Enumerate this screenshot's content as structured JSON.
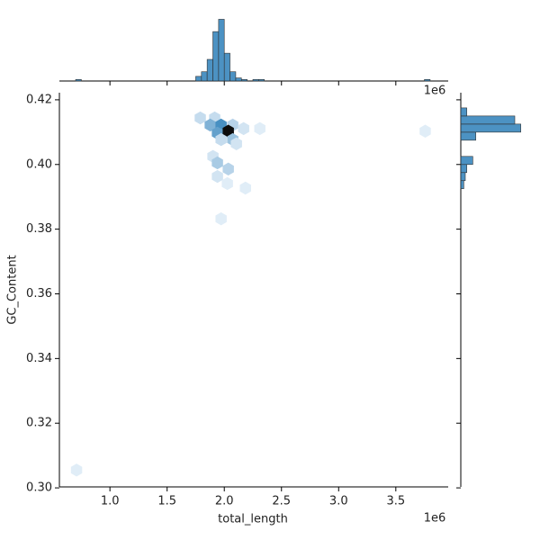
{
  "chart_data": {
    "type": "hexbin",
    "x_label": "total_length",
    "y_label": "GC_Content",
    "offset_label": "1e6",
    "color": "#1f77b4",
    "xlim": [
      558000,
      3958000
    ],
    "ylim": [
      0.3003,
      0.4222
    ],
    "xticks": [
      {
        "value": 1000000,
        "label": "1.0"
      },
      {
        "value": 1500000,
        "label": "1.5"
      },
      {
        "value": 2000000,
        "label": "2.0"
      },
      {
        "value": 2500000,
        "label": "2.5"
      },
      {
        "value": 3000000,
        "label": "3.0"
      },
      {
        "value": 3500000,
        "label": "3.5"
      }
    ],
    "yticks": [
      {
        "value": 0.3,
        "label": "0.30"
      },
      0.32,
      0.34,
      0.36,
      0.38,
      {
        "value": 0.4,
        "label": "0.40"
      },
      0.42
    ],
    "hexbin": {
      "x": [
        1790000,
        1916000,
        1877000,
        1972000,
        2074000,
        2169000,
        2311000,
        1940000,
        2035000,
        1972000,
        2074000,
        2106000,
        1901000,
        1940000,
        2035000,
        1940000,
        2027000,
        2185000,
        1972000,
        708000,
        3757000
      ],
      "y": [
        0.4144,
        0.4144,
        0.4122,
        0.4122,
        0.4122,
        0.4111,
        0.4111,
        0.4097,
        0.4103,
        0.4077,
        0.4077,
        0.4064,
        0.4025,
        0.4005,
        0.3986,
        0.3963,
        0.3941,
        0.3927,
        0.3832,
        0.3055,
        0.4103
      ],
      "counts": [
        3,
        3,
        8,
        12,
        4,
        2,
        1,
        10,
        25,
        3,
        6,
        2,
        2,
        5,
        4,
        2,
        1,
        1,
        1,
        1,
        1
      ]
    },
    "x_hist": {
      "bins": [
        700000,
        750000,
        800000,
        850000,
        900000,
        950000,
        1000000,
        1050000,
        1100000,
        1150000,
        1200000,
        1250000,
        1300000,
        1350000,
        1400000,
        1450000,
        1500000,
        1550000,
        1600000,
        1650000,
        1700000,
        1750000,
        1800000,
        1850000,
        1900000,
        1950000,
        2000000,
        2050000,
        2100000,
        2150000,
        2200000,
        2250000,
        2300000,
        2350000,
        2400000,
        2450000,
        2500000,
        2550000,
        2600000,
        2650000,
        2700000,
        2750000,
        2800000,
        2850000,
        2900000,
        2950000,
        3000000,
        3050000,
        3100000,
        3150000,
        3200000,
        3250000,
        3300000,
        3350000,
        3400000,
        3450000,
        3500000,
        3550000,
        3600000,
        3650000,
        3700000,
        3750000,
        3800000
      ],
      "counts": [
        1,
        0,
        0,
        0,
        0,
        0,
        0,
        0,
        0,
        0,
        0,
        0,
        0,
        0,
        0,
        0,
        0,
        0,
        0,
        0,
        0,
        3,
        6,
        14,
        32,
        40,
        18,
        6,
        2,
        1,
        0,
        1,
        1,
        0,
        0,
        0,
        0,
        0,
        0,
        0,
        0,
        0,
        0,
        0,
        0,
        0,
        0,
        0,
        0,
        0,
        0,
        0,
        0,
        0,
        0,
        0,
        0,
        0,
        0,
        0,
        0,
        1
      ],
      "ylim": [
        0,
        42
      ]
    },
    "y_hist": {
      "bins": [
        0.3925,
        0.395,
        0.3975,
        0.4,
        0.4025,
        0.405,
        0.4075,
        0.41,
        0.4125,
        0.415,
        0.4175
      ],
      "counts": [
        2,
        3,
        4,
        8,
        0,
        0,
        10,
        40,
        36,
        4
      ],
      "xlim": [
        0,
        42
      ]
    }
  }
}
